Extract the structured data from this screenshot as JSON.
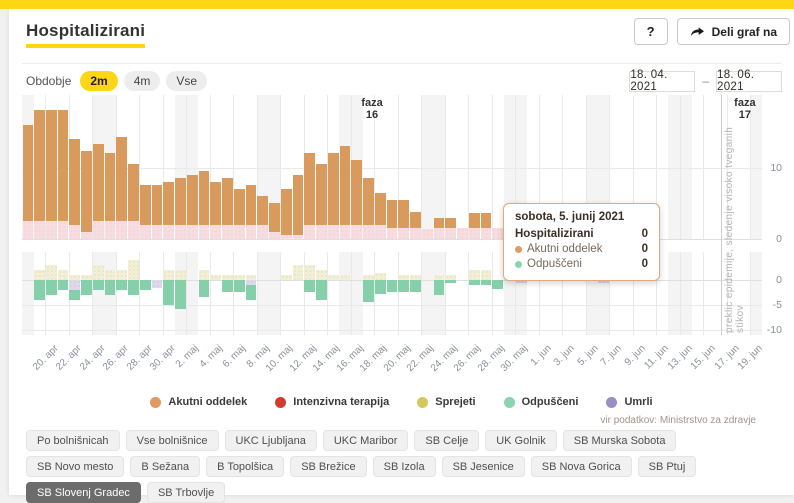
{
  "header": {
    "title": "Hospitalizirani",
    "help_label": "?",
    "share_label": "Deli graf na"
  },
  "period": {
    "label": "Obdobje",
    "options": [
      "2m",
      "4m",
      "Vse"
    ],
    "selected": "2m"
  },
  "date_range": {
    "from": "18. 04. 2021",
    "separator": "–",
    "to": "18. 06. 2021"
  },
  "chart_data": {
    "type": "bar",
    "title": "Hospitalizirani",
    "x_start": "18. 04. 2021",
    "x_end": "18. 06. 2021",
    "x_tick_labels": [
      "20. apr",
      "22. apr",
      "24. apr",
      "26. apr",
      "28. apr",
      "30. apr",
      "2. maj",
      "4. maj",
      "6. maj",
      "8. maj",
      "10. maj",
      "12. maj",
      "14. maj",
      "16. maj",
      "18. maj",
      "20. maj",
      "22. maj",
      "24. maj",
      "26. maj",
      "28. maj",
      "30. maj",
      "1. jun",
      "3. jun",
      "5. jun",
      "7. jun",
      "9. jun",
      "11. jun",
      "13. jun",
      "15. jun",
      "17. jun",
      "19. jun"
    ],
    "y_ticks_upper": [
      10,
      0
    ],
    "y_ticks_lower": [
      0,
      -5,
      -10
    ],
    "ylim_upper": [
      0,
      20
    ],
    "ylim_lower": [
      -11,
      5.6
    ],
    "weekend_shading": true,
    "first_day_of_week": "sunday",
    "series": [
      {
        "name": "Intenzivna terapija",
        "css": "bar-icu",
        "plot": "upper",
        "values": [
          2.5,
          2.5,
          2.5,
          2.5,
          2,
          1,
          2.5,
          2.5,
          2.5,
          2.5,
          2,
          2,
          2,
          2,
          2,
          2,
          2,
          2,
          2,
          2,
          2,
          1,
          0.5,
          0.5,
          2,
          2,
          2,
          2,
          2,
          2,
          2,
          1.5,
          1.5,
          1.5,
          1.4,
          1.5,
          1.5,
          1.5,
          1.6,
          1.6,
          1.6,
          1.6,
          1.6,
          1,
          1,
          1,
          0.5,
          0.5,
          0,
          0,
          0,
          0,
          0,
          0,
          0,
          0,
          0,
          0,
          0,
          0,
          0,
          0
        ]
      },
      {
        "name": "Akutni oddelek",
        "css": "bar-acute",
        "plot": "upper",
        "values": [
          13.5,
          15.5,
          15.5,
          15.5,
          12,
          11.3,
          10.8,
          9.5,
          11.8,
          8,
          5.5,
          5.5,
          6,
          6.5,
          7,
          7.5,
          6,
          6.5,
          5,
          5.5,
          4,
          4,
          6.5,
          8.5,
          10,
          8.5,
          10,
          11,
          9,
          6.5,
          4.5,
          4,
          3.9,
          2.3,
          0,
          1.5,
          1.5,
          0,
          2,
          2,
          0,
          0,
          0,
          0,
          0,
          0,
          0,
          0,
          0,
          0,
          0,
          0,
          0,
          0,
          0,
          0,
          0,
          0,
          0,
          0,
          0,
          0
        ]
      },
      {
        "name": "Sprejeti",
        "css": "bar-adm",
        "plot": "lower",
        "values": [
          0,
          2,
          3,
          2,
          1,
          1,
          3,
          2,
          2,
          4,
          0,
          0,
          2,
          2,
          0,
          2,
          1,
          1,
          1,
          1,
          0,
          0,
          1,
          3,
          3,
          2,
          1,
          1,
          0,
          1,
          1.4,
          0,
          1,
          1,
          0,
          1,
          1,
          0,
          2,
          2,
          0,
          0,
          1,
          0,
          0,
          0,
          0,
          0,
          0,
          0,
          0,
          0,
          0,
          0,
          0,
          0,
          0,
          0,
          0,
          0,
          0,
          0
        ]
      },
      {
        "name": "Umrli",
        "css": "bar-died",
        "plot": "lower",
        "values": [
          0,
          0,
          0,
          0,
          2,
          0,
          0,
          0,
          0,
          0,
          0,
          1.5,
          0,
          0,
          0,
          0,
          0,
          0,
          0,
          1,
          0,
          0,
          0,
          0,
          0,
          0,
          0,
          0,
          0,
          0,
          0,
          0,
          0,
          0,
          0,
          0,
          0,
          0,
          0,
          0,
          0,
          0,
          0.5,
          0,
          0,
          0,
          0,
          0,
          0,
          0.5,
          0,
          0,
          0,
          0,
          0,
          0,
          0,
          0,
          0,
          0,
          0,
          0
        ]
      },
      {
        "name": "Odpuščeni",
        "css": "bar-dis",
        "plot": "lower",
        "values": [
          0,
          4,
          3,
          2,
          2,
          3,
          2,
          3,
          2,
          3,
          2,
          0,
          5,
          5.7,
          0,
          3.3,
          0,
          2.3,
          2.3,
          3,
          0,
          0,
          0,
          0,
          2.3,
          4,
          0,
          0,
          0,
          4.3,
          2.7,
          2.3,
          2.3,
          2.3,
          0,
          3,
          0.5,
          0,
          1,
          1,
          1.7,
          0,
          0,
          0,
          0,
          0,
          0,
          0,
          0,
          0,
          0,
          0,
          0,
          0,
          0,
          0,
          0,
          0,
          0,
          0,
          0,
          0
        ]
      }
    ],
    "phases": [
      {
        "label": "faza 16",
        "day": 29.8,
        "line": false,
        "note": ""
      },
      {
        "label": "faza 17",
        "day": 59.5,
        "line": true,
        "note": "preklic epidemije, sledenje visoko tveganih stikov"
      }
    ]
  },
  "tooltip": {
    "date": "sobota, 5. junij 2021",
    "rows": [
      {
        "label": "Hospitalizirani",
        "value": "0",
        "strong": true,
        "dot": ""
      },
      {
        "label": "Akutni oddelek",
        "value": "0",
        "strong": false,
        "dot": "#e09a62"
      },
      {
        "label": "Odpuščeni",
        "value": "0",
        "strong": false,
        "dot": "#8bd2ae"
      }
    ]
  },
  "legend": [
    {
      "label": "Akutni oddelek",
      "color": "#e09a62"
    },
    {
      "label": "Intenzivna terapija",
      "color": "#d23b2e"
    },
    {
      "label": "Sprejeti",
      "color": "#d4c95e"
    },
    {
      "label": "Odpuščeni",
      "color": "#8bd2ae"
    },
    {
      "label": "Umrli",
      "color": "#9b8ec0"
    }
  ],
  "source": "vir podatkov: Ministrstvo za zdravje",
  "hospitals": {
    "items": [
      "Po bolnišnicah",
      "Vse bolnišnice",
      "UKC Ljubljana",
      "UKC Maribor",
      "SB Celje",
      "UK Golnik",
      "SB Murska Sobota",
      "SB Novo mesto",
      "B Sežana",
      "B Topolšica",
      "SB Brežice",
      "SB Izola",
      "SB Jesenice",
      "SB Nova Gorica",
      "SB Ptuj",
      "SB Slovenj Gradec",
      "SB Trbovlje"
    ],
    "selected": "SB Slovenj Gradec"
  },
  "colors": {
    "brand_yellow": "#ffd615",
    "acute": "#d99a5e",
    "icu_band": "#f8dde0",
    "admitted": "#f3efd6",
    "discharged": "#85cfab",
    "deaths": "#ded9ea"
  }
}
